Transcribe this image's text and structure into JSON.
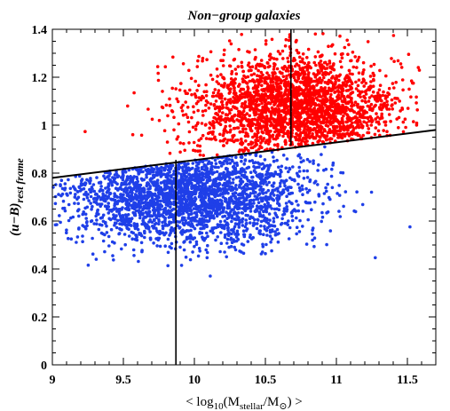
{
  "chart_data": {
    "type": "scatter",
    "title": "Non−group galaxies",
    "xlabel_parts": {
      "open": "< log",
      "sub": "10",
      "mid": "(M",
      "sub2": "stellar",
      "mid2": "/M",
      "sub3": "⊙",
      "close": ") >"
    },
    "ylabel_parts": {
      "main": "(u−B)",
      "sub": "rest frame"
    },
    "xlim": [
      9.0,
      11.7
    ],
    "ylim": [
      0.0,
      1.4
    ],
    "xticks": [
      "9",
      "9.5",
      "10",
      "10.5",
      "11",
      "11.5"
    ],
    "yticks": [
      "0",
      "0.2",
      "0.4",
      "0.6",
      "0.8",
      "1",
      "1.2",
      "1.4"
    ],
    "series": [
      {
        "color": "#ff0000",
        "distribution": {
          "n": 2400,
          "x_mean": 10.72,
          "x_sd": 0.36,
          "y_mean": 1.07,
          "y_sd": 0.11,
          "condition": "above_divider",
          "x_range": [
            9.0,
            11.6
          ]
        }
      },
      {
        "color": "#1f3fe8",
        "distribution": {
          "n": 2600,
          "x_mean": 9.95,
          "x_sd": 0.42,
          "y_mean": 0.71,
          "y_sd": 0.1,
          "condition": "below_divider",
          "x_range": [
            9.0,
            11.7
          ]
        }
      }
    ],
    "divider_line": {
      "x": [
        9.0,
        11.7
      ],
      "y": [
        0.78,
        0.98
      ],
      "color": "#000000"
    },
    "vertical_lines": [
      {
        "x": 9.87,
        "y_from": 0.0,
        "y_to": 0.855
      },
      {
        "x": 10.68,
        "y_from": 0.915,
        "y_to": 1.4
      }
    ],
    "grid": false,
    "legend": "none"
  }
}
